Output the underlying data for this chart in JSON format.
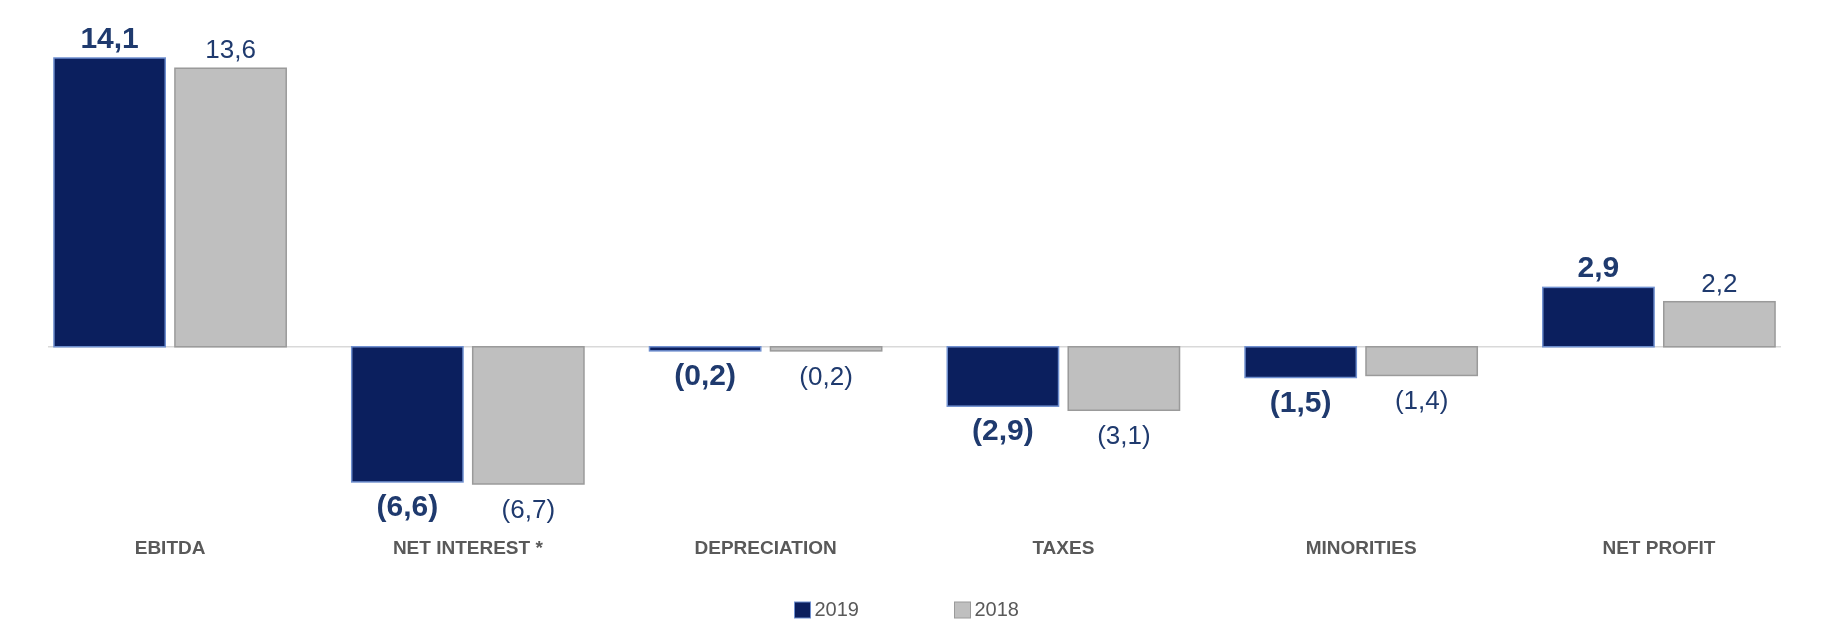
{
  "chart_data": {
    "type": "bar",
    "categories": [
      "EBITDA",
      "NET INTEREST *",
      "DEPRECIATION",
      "TAXES",
      "MINORITIES",
      "NET PROFIT"
    ],
    "series": [
      {
        "name": "2019",
        "color": "#0b1f5e",
        "values": [
          14.1,
          -6.6,
          -0.2,
          -2.9,
          -1.5,
          2.9
        ],
        "value_labels": [
          "14,1",
          "(6,6)",
          "(0,2)",
          "(2,9)",
          "(1,5)",
          "2,9"
        ]
      },
      {
        "name": "2018",
        "color": "#bfbfbf",
        "values": [
          13.6,
          -6.7,
          -0.2,
          -3.1,
          -1.4,
          2.2
        ],
        "value_labels": [
          "13,6",
          "(6,7)",
          "(0,2)",
          "(3,1)",
          "(1,4)",
          "2,2"
        ]
      }
    ],
    "legend": "bottom",
    "tick_labels": "x"
  }
}
